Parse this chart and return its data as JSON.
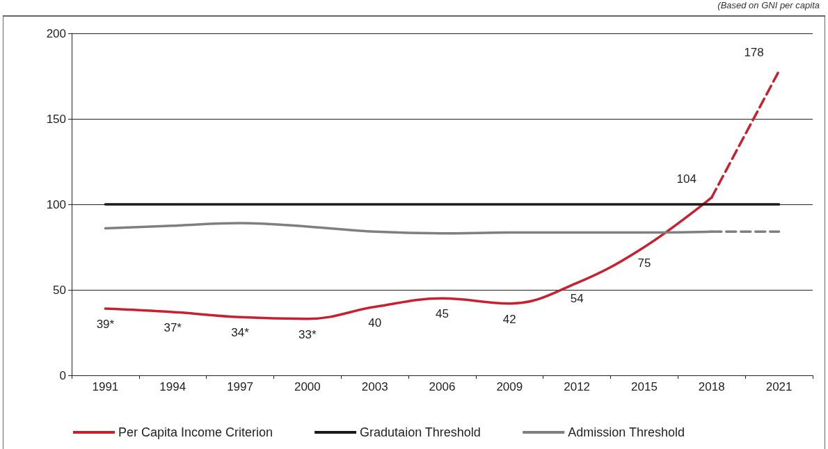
{
  "chart_data": {
    "type": "line",
    "annotations": [
      "(Based on GNI per capita"
    ],
    "categories": [
      "1991",
      "1994",
      "1997",
      "2000",
      "2003",
      "2006",
      "2009",
      "2012",
      "2015",
      "2018",
      "2021"
    ],
    "series": [
      {
        "name": "Per Capita Income Criterion",
        "color": "#c8202e",
        "values": [
          39,
          37,
          34,
          33,
          40,
          45,
          42,
          54,
          75,
          104,
          null
        ],
        "value_labels": [
          "39*",
          "37*",
          "34*",
          "33*",
          "40",
          "45",
          "42",
          "54",
          "75",
          "104",
          null
        ]
      },
      {
        "color": "#c8202e",
        "line_style": "dashed",
        "values": [
          null,
          null,
          null,
          null,
          null,
          null,
          null,
          null,
          null,
          104,
          178
        ],
        "value_labels": [
          null,
          null,
          null,
          null,
          null,
          null,
          null,
          null,
          null,
          null,
          "178"
        ]
      },
      {
        "name": "Gradutaion Threshold",
        "color": "#1a1a1a",
        "values": [
          100,
          100,
          100,
          100,
          100,
          100,
          100,
          100,
          100,
          100,
          100
        ]
      },
      {
        "name": "Admission Threshold",
        "color": "#7f7f7f",
        "values": [
          86,
          87.5,
          89,
          87,
          84,
          83,
          83.5,
          83.5,
          83.5,
          84,
          null
        ]
      },
      {
        "color": "#7f7f7f",
        "line_style": "dashed",
        "values": [
          null,
          null,
          null,
          null,
          null,
          null,
          null,
          null,
          null,
          84,
          84
        ]
      }
    ],
    "ylim": [
      0,
      200
    ],
    "yticks": [
      0,
      50,
      100,
      150,
      200
    ],
    "grid": "y",
    "legend": "bottom",
    "marker": "none"
  }
}
